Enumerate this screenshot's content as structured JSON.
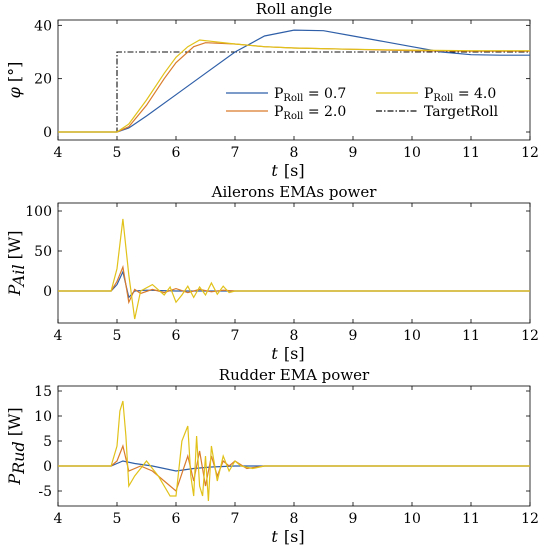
{
  "colors": {
    "p07": "#2f5fa8",
    "p20": "#d97b2c",
    "p40": "#e1c21a",
    "target": "#111111"
  },
  "chart_data": [
    {
      "type": "line",
      "title": "Roll angle",
      "ylabel": "φ",
      "yunit": "[°]",
      "xlabel": "t",
      "xunit": "[s]",
      "xlim": [
        4,
        12
      ],
      "ylim": [
        -3,
        42
      ],
      "xticks": [
        "4",
        "5",
        "6",
        "7",
        "8",
        "9",
        "10",
        "11",
        "12"
      ],
      "yticks": [
        "0",
        "20",
        "40"
      ],
      "legend": {
        "placement": "bottom-right",
        "entries": [
          {
            "key": "p07",
            "prefix": "P",
            "sub": "Roll",
            "suffix": " = 0.7"
          },
          {
            "key": "p40",
            "prefix": "P",
            "sub": "Roll",
            "suffix": " = 4.0"
          },
          {
            "key": "p20",
            "prefix": "P",
            "sub": "Roll",
            "suffix": " = 2.0"
          },
          {
            "key": "target",
            "prefix": "TargetRoll",
            "sub": "",
            "suffix": ""
          }
        ]
      },
      "series": [
        {
          "key": "target",
          "x": [
            4,
            5.0,
            5.0,
            12
          ],
          "y": [
            0,
            0,
            30,
            30
          ]
        },
        {
          "key": "p07",
          "x": [
            4,
            5.0,
            5.2,
            5.5,
            6,
            6.5,
            7,
            7.5,
            8,
            8.5,
            9,
            9.5,
            10,
            10.5,
            11,
            11.5,
            12
          ],
          "y": [
            0,
            0,
            1.5,
            6,
            14,
            22,
            30,
            36,
            38.2,
            38,
            36,
            34,
            32,
            30,
            29,
            28.8,
            28.8
          ]
        },
        {
          "key": "p20",
          "x": [
            4,
            5.0,
            5.2,
            5.5,
            5.8,
            6,
            6.3,
            6.5,
            7,
            7.5,
            8,
            9,
            10,
            11,
            12
          ],
          "y": [
            0,
            0,
            2,
            10,
            20,
            26,
            32,
            33.5,
            33,
            32,
            31.5,
            31,
            30.5,
            30.3,
            30.3
          ]
        },
        {
          "key": "p40",
          "x": [
            4,
            5.0,
            5.2,
            5.5,
            5.8,
            6,
            6.2,
            6.4,
            6.6,
            7,
            7.5,
            8,
            9,
            10,
            11,
            12
          ],
          "y": [
            0,
            0,
            3,
            12,
            22,
            28,
            32,
            34.5,
            34,
            33,
            32,
            31.5,
            31,
            30.7,
            30.5,
            30.5
          ]
        }
      ]
    },
    {
      "type": "line",
      "title": "Ailerons EMAs power",
      "ylabel": "P",
      "ysub": "Ail",
      "yunit": "[W]",
      "xlabel": "t",
      "xunit": "[s]",
      "xlim": [
        4,
        12
      ],
      "ylim": [
        -40,
        110
      ],
      "xticks": [
        "4",
        "5",
        "6",
        "7",
        "8",
        "9",
        "10",
        "11",
        "12"
      ],
      "yticks": [
        "-50",
        "0",
        "50",
        "100"
      ],
      "series": [
        {
          "key": "p07",
          "x": [
            4,
            4.9,
            5.0,
            5.1,
            5.2,
            5.3,
            5.5,
            6,
            7,
            12
          ],
          "y": [
            0,
            0,
            8,
            24,
            -8,
            0,
            1,
            0,
            0,
            0
          ]
        },
        {
          "key": "p20",
          "x": [
            4,
            4.9,
            5.0,
            5.1,
            5.2,
            5.3,
            5.4,
            5.6,
            5.8,
            6,
            6.2,
            6.4,
            6.6,
            6.8,
            7,
            12
          ],
          "y": [
            0,
            0,
            12,
            30,
            -14,
            2,
            -3,
            2,
            -2,
            3,
            -2,
            2,
            -1,
            1,
            0,
            0
          ]
        },
        {
          "key": "p40",
          "x": [
            4,
            4.9,
            5.0,
            5.1,
            5.2,
            5.3,
            5.4,
            5.6,
            5.8,
            5.9,
            6.0,
            6.1,
            6.2,
            6.3,
            6.4,
            6.5,
            6.6,
            6.7,
            6.8,
            6.9,
            7.0,
            12
          ],
          "y": [
            0,
            0,
            28,
            90,
            20,
            -35,
            0,
            8,
            -5,
            5,
            -14,
            -5,
            6,
            -8,
            5,
            -5,
            10,
            -4,
            6,
            -2,
            0,
            0
          ]
        }
      ]
    },
    {
      "type": "line",
      "title": "Rudder EMA power",
      "ylabel": "P",
      "ysub": "Rud",
      "yunit": "[W]",
      "xlabel": "t",
      "xunit": "[s]",
      "xlim": [
        4,
        12
      ],
      "ylim": [
        -8,
        16
      ],
      "xticks": [
        "4",
        "5",
        "6",
        "7",
        "8",
        "9",
        "10",
        "11",
        "12"
      ],
      "yticks": [
        "-5",
        "0",
        "5",
        "10",
        "15"
      ],
      "series": [
        {
          "key": "p07",
          "x": [
            4,
            4.9,
            5.0,
            5.1,
            5.3,
            5.6,
            6.0,
            6.3,
            6.6,
            7.0,
            7.5,
            12
          ],
          "y": [
            0,
            0,
            0.5,
            1,
            0.5,
            0,
            -1,
            -0.5,
            -0.2,
            0,
            0,
            0
          ]
        },
        {
          "key": "p20",
          "x": [
            4,
            4.9,
            5.0,
            5.1,
            5.2,
            5.4,
            5.6,
            5.8,
            6.0,
            6.2,
            6.3,
            6.4,
            6.5,
            6.6,
            6.7,
            6.8,
            6.9,
            7.0,
            7.2,
            7.5,
            12
          ],
          "y": [
            0,
            0,
            1,
            4,
            -1,
            0,
            -1,
            -3,
            -5,
            2,
            -3,
            3,
            -4,
            2,
            -2,
            1,
            0,
            1,
            -0.5,
            0,
            0
          ]
        },
        {
          "key": "p40",
          "x": [
            4,
            4.9,
            5.0,
            5.05,
            5.1,
            5.15,
            5.2,
            5.3,
            5.5,
            5.7,
            5.9,
            6.0,
            6.1,
            6.2,
            6.25,
            6.3,
            6.35,
            6.4,
            6.45,
            6.5,
            6.55,
            6.6,
            6.7,
            6.8,
            6.9,
            7.0,
            7.1,
            7.3,
            7.5,
            12
          ],
          "y": [
            0,
            0,
            4,
            11,
            13,
            6,
            -4,
            -2,
            1,
            -2,
            -6,
            -6,
            5,
            8,
            -2,
            -6,
            6,
            -4,
            -6,
            2,
            -7,
            4,
            -3,
            2,
            -1,
            1,
            0,
            -0.5,
            0,
            0
          ]
        }
      ]
    }
  ]
}
